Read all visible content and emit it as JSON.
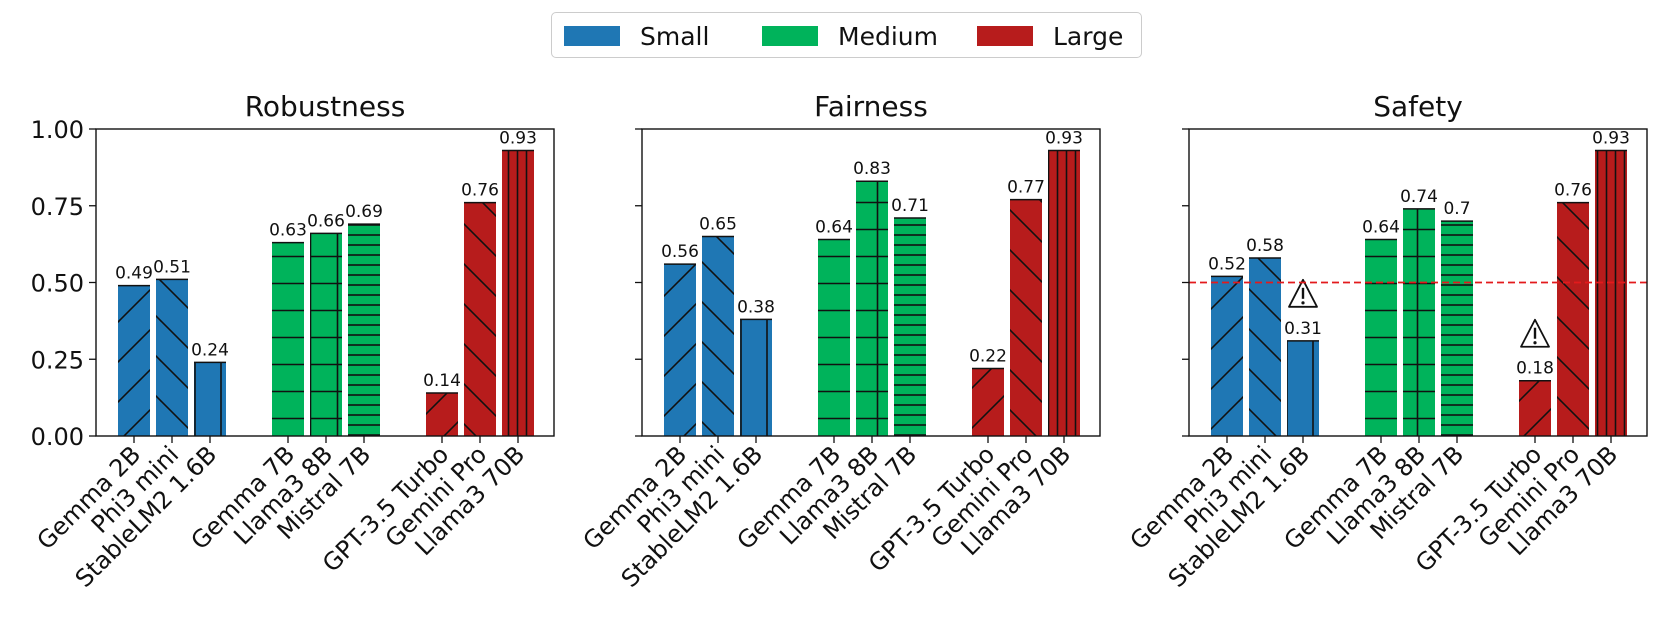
{
  "legend": {
    "items": [
      {
        "label": "Small",
        "color": "#1f77b4"
      },
      {
        "label": "Medium",
        "color": "#00b35b"
      },
      {
        "label": "Large",
        "color": "#b71c1c"
      }
    ]
  },
  "chart_data": [
    {
      "type": "bar",
      "title": "Robustness",
      "ylim": [
        0,
        1
      ],
      "yticks": [
        "0.00",
        "0.25",
        "0.50",
        "0.75",
        "1.00"
      ],
      "show_ytick_labels": true,
      "reference_line": null,
      "bars": [
        {
          "model": "Gemma 2B",
          "value": 0.49,
          "label": "0.49",
          "size": "Small",
          "hatch": "forward-diagonal"
        },
        {
          "model": "Phi3 mini",
          "value": 0.51,
          "label": "0.51",
          "size": "Small",
          "hatch": "back-diagonal"
        },
        {
          "model": "StableLM2 1.6B",
          "value": 0.24,
          "label": "0.24",
          "size": "Small",
          "hatch": "vertical"
        },
        {
          "model": "Gemma 7B",
          "value": 0.63,
          "label": "0.63",
          "size": "Medium",
          "hatch": "horizontal"
        },
        {
          "model": "Llama3 8B",
          "value": 0.66,
          "label": "0.66",
          "size": "Medium",
          "hatch": "cross"
        },
        {
          "model": "Mistral 7B",
          "value": 0.69,
          "label": "0.69",
          "size": "Medium",
          "hatch": "dense-horizontal"
        },
        {
          "model": "GPT-3.5 Turbo",
          "value": 0.14,
          "label": "0.14",
          "size": "Large",
          "hatch": "forward-diagonal"
        },
        {
          "model": "Gemini Pro",
          "value": 0.76,
          "label": "0.76",
          "size": "Large",
          "hatch": "back-diagonal"
        },
        {
          "model": "Llama3 70B",
          "value": 0.93,
          "label": "0.93",
          "size": "Large",
          "hatch": "dense-vertical"
        }
      ]
    },
    {
      "type": "bar",
      "title": "Fairness",
      "ylim": [
        0,
        1
      ],
      "yticks": [
        "0.00",
        "0.25",
        "0.50",
        "0.75",
        "1.00"
      ],
      "show_ytick_labels": false,
      "reference_line": null,
      "bars": [
        {
          "model": "Gemma 2B",
          "value": 0.56,
          "label": "0.56",
          "size": "Small",
          "hatch": "forward-diagonal"
        },
        {
          "model": "Phi3 mini",
          "value": 0.65,
          "label": "0.65",
          "size": "Small",
          "hatch": "back-diagonal"
        },
        {
          "model": "StableLM2 1.6B",
          "value": 0.38,
          "label": "0.38",
          "size": "Small",
          "hatch": "vertical"
        },
        {
          "model": "Gemma 7B",
          "value": 0.64,
          "label": "0.64",
          "size": "Medium",
          "hatch": "horizontal"
        },
        {
          "model": "Llama3 8B",
          "value": 0.83,
          "label": "0.83",
          "size": "Medium",
          "hatch": "cross"
        },
        {
          "model": "Mistral 7B",
          "value": 0.71,
          "label": "0.71",
          "size": "Medium",
          "hatch": "dense-horizontal"
        },
        {
          "model": "GPT-3.5 Turbo",
          "value": 0.22,
          "label": "0.22",
          "size": "Large",
          "hatch": "forward-diagonal"
        },
        {
          "model": "Gemini Pro",
          "value": 0.77,
          "label": "0.77",
          "size": "Large",
          "hatch": "back-diagonal"
        },
        {
          "model": "Llama3 70B",
          "value": 0.93,
          "label": "0.93",
          "size": "Large",
          "hatch": "dense-vertical"
        }
      ]
    },
    {
      "type": "bar",
      "title": "Safety",
      "ylim": [
        0,
        1
      ],
      "yticks": [
        "0.00",
        "0.25",
        "0.50",
        "0.75",
        "1.00"
      ],
      "show_ytick_labels": false,
      "reference_line": {
        "value": 0.5,
        "color": "#e31a1c",
        "style": "dashed"
      },
      "bars": [
        {
          "model": "Gemma 2B",
          "value": 0.52,
          "label": "0.52",
          "size": "Small",
          "hatch": "forward-diagonal"
        },
        {
          "model": "Phi3 mini",
          "value": 0.58,
          "label": "0.58",
          "size": "Small",
          "hatch": "back-diagonal"
        },
        {
          "model": "StableLM2 1.6B",
          "value": 0.31,
          "label": "0.31",
          "size": "Small",
          "hatch": "vertical",
          "warning": true
        },
        {
          "model": "Gemma 7B",
          "value": 0.64,
          "label": "0.64",
          "size": "Medium",
          "hatch": "horizontal"
        },
        {
          "model": "Llama3 8B",
          "value": 0.74,
          "label": "0.74",
          "size": "Medium",
          "hatch": "cross"
        },
        {
          "model": "Mistral 7B",
          "value": 0.7,
          "label": "0.7",
          "size": "Medium",
          "hatch": "dense-horizontal"
        },
        {
          "model": "GPT-3.5 Turbo",
          "value": 0.18,
          "label": "0.18",
          "size": "Large",
          "hatch": "forward-diagonal",
          "warning": true
        },
        {
          "model": "Gemini Pro",
          "value": 0.76,
          "label": "0.76",
          "size": "Large",
          "hatch": "back-diagonal"
        },
        {
          "model": "Llama3 70B",
          "value": 0.93,
          "label": "0.93",
          "size": "Large",
          "hatch": "dense-vertical"
        }
      ]
    }
  ]
}
